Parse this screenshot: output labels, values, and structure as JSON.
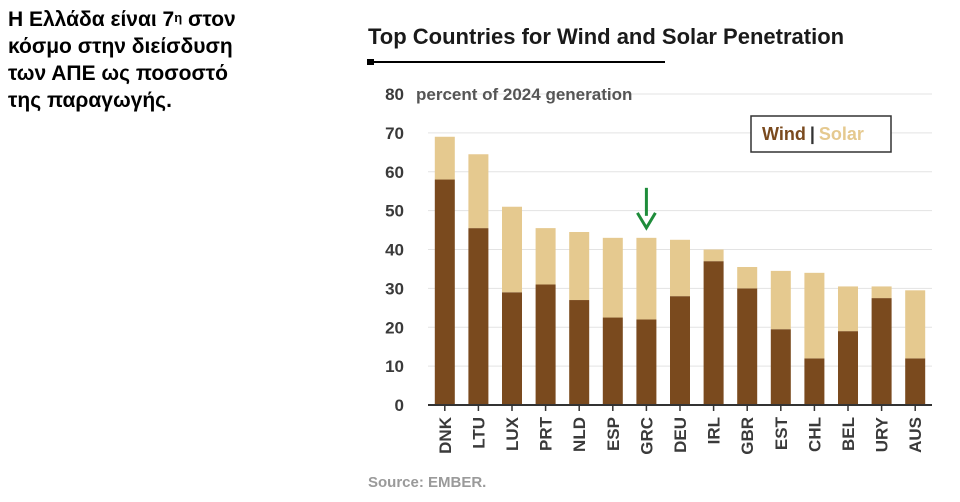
{
  "side_text": {
    "line1_pre": "Η Ελλάδα είναι 7",
    "line1_sup": "η",
    "line1_post": " στον",
    "line2": "κόσμο στην διείσδυση",
    "line3": "των ΑΠΕ ως ποσοστό",
    "line4": "της παραγωγής."
  },
  "colors": {
    "wind": "#7a4a1e",
    "solar": "#e5c98f",
    "arrow": "#1e8c3a",
    "text": "#3a3a3a",
    "source": "#9a9a9a",
    "grid": "#e3e3e3"
  },
  "chart_data": {
    "type": "bar",
    "stacked": true,
    "title": "Top Countries for Wind and Solar Penetration",
    "ylabel": "percent of 2024 generation",
    "ylim": [
      0,
      80
    ],
    "yticks": [
      0,
      10,
      20,
      30,
      40,
      50,
      60,
      70,
      80
    ],
    "categories": [
      "DNK",
      "LTU",
      "LUX",
      "PRT",
      "NLD",
      "ESP",
      "GRC",
      "DEU",
      "IRL",
      "GBR",
      "EST",
      "CHL",
      "BEL",
      "URY",
      "AUS"
    ],
    "series": [
      {
        "name": "Wind",
        "values": [
          58,
          45.5,
          29,
          31,
          27,
          22.5,
          22,
          28,
          37,
          30,
          19.5,
          12,
          19,
          27.5,
          12
        ]
      },
      {
        "name": "Solar",
        "values": [
          11,
          19,
          22,
          14.5,
          17.5,
          20.5,
          21,
          14.5,
          3,
          5.5,
          15,
          22,
          11.5,
          3,
          17.5
        ]
      }
    ],
    "legend": {
      "wind_label": "Wind",
      "separator": "|",
      "solar_label": "Solar",
      "position": "top-right"
    },
    "annotation": {
      "type": "arrow",
      "category": "GRC"
    },
    "source": "Source: EMBER."
  }
}
